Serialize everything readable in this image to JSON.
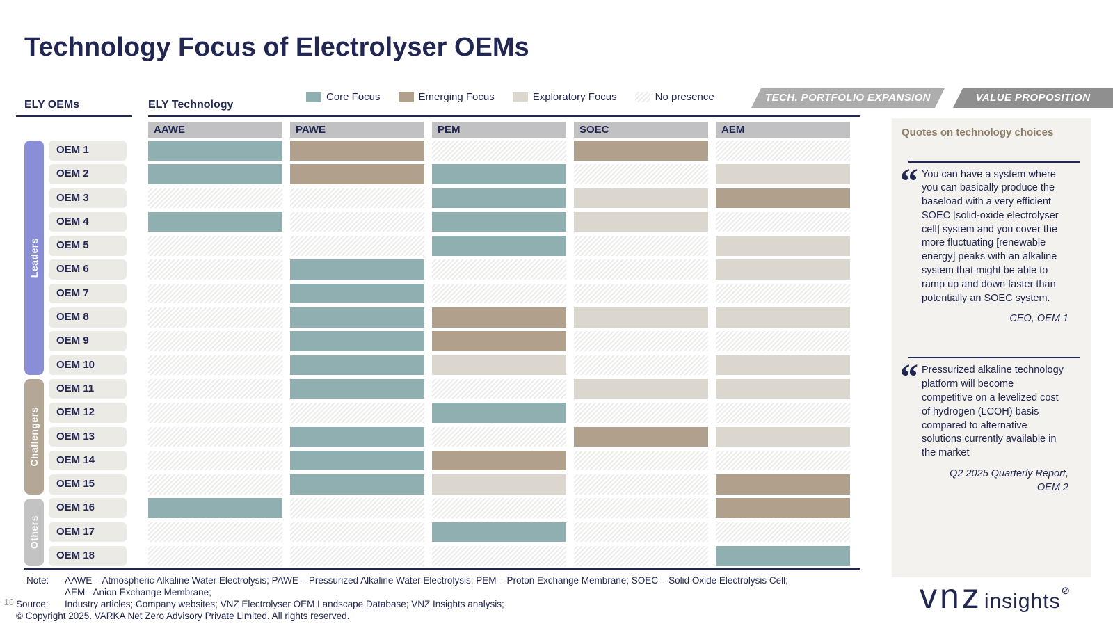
{
  "title": {
    "bold": "Technology Focus",
    "rest": " of Electrolyser OEMs"
  },
  "left_header": "ELY OEMs",
  "matrix_header": "ELY Technology",
  "legend": [
    {
      "label": "Core Focus",
      "type": "core"
    },
    {
      "label": "Emerging Focus",
      "type": "emerging"
    },
    {
      "label": "Exploratory Focus",
      "type": "exploratory"
    },
    {
      "label": "No presence",
      "type": "none"
    }
  ],
  "tabs": [
    {
      "label": "TECH. PORTFOLIO EXPANSION"
    },
    {
      "label": "VALUE PROPOSITION"
    }
  ],
  "colors": {
    "navy": "#212750",
    "core": "#8FAFB1",
    "emerging": "#B1A08C",
    "exploratory": "#DBD7CE",
    "panel_background": "#F4F2EE",
    "column_header": "#C1C1C3",
    "quote_heading": "#8D7D68"
  },
  "chart_data": {
    "type": "heatmap",
    "title": "Technology Focus of Electrolyser OEMs",
    "legend": [
      "Core Focus",
      "Emerging Focus",
      "Exploratory Focus",
      "No presence"
    ],
    "columns": [
      "AAWE",
      "PAWE",
      "PEM",
      "SOEC",
      "AEM"
    ],
    "groups": [
      {
        "label": "Leaders",
        "start": 0,
        "count": 10,
        "color": "#8A8ED7"
      },
      {
        "label": "Challengers",
        "start": 10,
        "count": 5,
        "color": "#B5A795"
      },
      {
        "label": "Others",
        "start": 15,
        "count": 3,
        "color": "#C3C3C3"
      }
    ],
    "rows": [
      {
        "name": "OEM 1",
        "group": "Leaders",
        "values": [
          "core",
          "emerging",
          "none",
          "emerging",
          "none"
        ]
      },
      {
        "name": "OEM 2",
        "group": "Leaders",
        "values": [
          "core",
          "emerging",
          "core",
          "none",
          "exploratory"
        ]
      },
      {
        "name": "OEM 3",
        "group": "Leaders",
        "values": [
          "none",
          "none",
          "core",
          "exploratory",
          "emerging"
        ]
      },
      {
        "name": "OEM 4",
        "group": "Leaders",
        "values": [
          "core",
          "none",
          "core",
          "exploratory",
          "none"
        ]
      },
      {
        "name": "OEM 5",
        "group": "Leaders",
        "values": [
          "none",
          "none",
          "core",
          "none",
          "exploratory"
        ]
      },
      {
        "name": "OEM 6",
        "group": "Leaders",
        "values": [
          "none",
          "core",
          "none",
          "none",
          "exploratory"
        ]
      },
      {
        "name": "OEM 7",
        "group": "Leaders",
        "values": [
          "none",
          "core",
          "none",
          "none",
          "none"
        ]
      },
      {
        "name": "OEM 8",
        "group": "Leaders",
        "values": [
          "none",
          "core",
          "emerging",
          "exploratory",
          "exploratory"
        ]
      },
      {
        "name": "OEM 9",
        "group": "Leaders",
        "values": [
          "none",
          "core",
          "emerging",
          "none",
          "none"
        ]
      },
      {
        "name": "OEM 10",
        "group": "Leaders",
        "values": [
          "none",
          "core",
          "exploratory",
          "none",
          "exploratory"
        ]
      },
      {
        "name": "OEM 11",
        "group": "Challengers",
        "values": [
          "none",
          "core",
          "none",
          "exploratory",
          "exploratory"
        ]
      },
      {
        "name": "OEM 12",
        "group": "Challengers",
        "values": [
          "none",
          "none",
          "core",
          "none",
          "none"
        ]
      },
      {
        "name": "OEM 13",
        "group": "Challengers",
        "values": [
          "none",
          "core",
          "none",
          "emerging",
          "exploratory"
        ]
      },
      {
        "name": "OEM 14",
        "group": "Challengers",
        "values": [
          "none",
          "core",
          "emerging",
          "none",
          "none"
        ]
      },
      {
        "name": "OEM 15",
        "group": "Challengers",
        "values": [
          "none",
          "core",
          "exploratory",
          "none",
          "emerging"
        ]
      },
      {
        "name": "OEM 16",
        "group": "Others",
        "values": [
          "core",
          "none",
          "none",
          "none",
          "emerging"
        ]
      },
      {
        "name": "OEM 17",
        "group": "Others",
        "values": [
          "none",
          "none",
          "core",
          "none",
          "none"
        ]
      },
      {
        "name": "OEM 18",
        "group": "Others",
        "values": [
          "none",
          "none",
          "none",
          "none",
          "core"
        ]
      }
    ]
  },
  "quotes_panel": {
    "heading": "Quotes on technology choices",
    "quotes": [
      {
        "text": "You can have a system where you can basically produce the baseload with a very efficient SOEC [solid-oxide electrolyser cell] system and you cover the more fluctuating [renewable energy] peaks with an alkaline system that might be able to ramp up and down faster than potentially an SOEC system.",
        "attribution": "CEO, OEM 1"
      },
      {
        "text": "Pressurized alkaline technology platform will become competitive on a levelized cost of hydrogen (LCOH) basis compared to alternative solutions currently available in the market",
        "attribution": "Q2 2025 Quarterly Report,\nOEM 2"
      }
    ]
  },
  "footer": {
    "page_number": "10",
    "note_label": "Note:",
    "note_line1": "AAWE – Atmospheric Alkaline Water Electrolysis; PAWE – Pressurized Alkaline Water Electrolysis; PEM – Proton Exchange Membrane; SOEC – Solid Oxide Electrolysis Cell;",
    "note_line2": "AEM –Anion Exchange Membrane;",
    "source_label": "Source:",
    "source_text": "Industry articles; Company websites; VNZ Electrolyser OEM Landscape Database; VNZ Insights analysis;",
    "copyright": "© Copyright 2025. VARKA Net Zero Advisory Private Limited. All rights reserved."
  },
  "logo": {
    "main": "vnz",
    "sub": "insights",
    "mark": "⊘"
  }
}
